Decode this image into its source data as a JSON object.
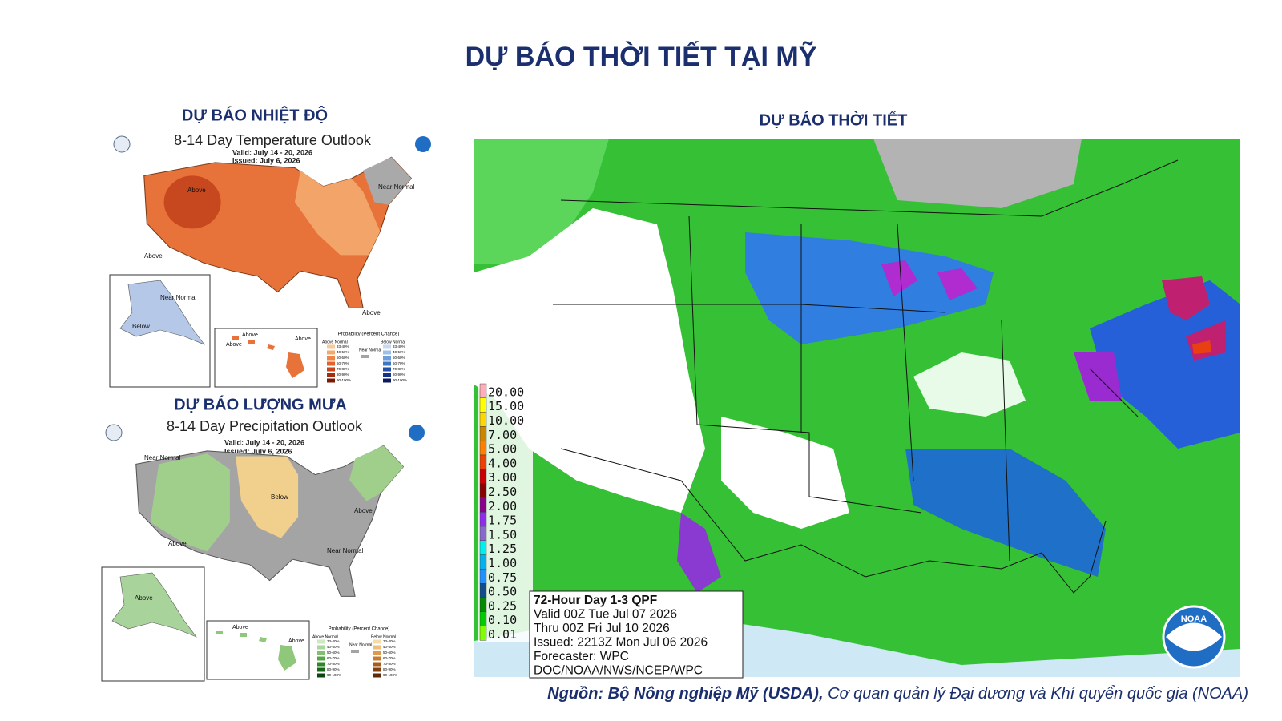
{
  "title": "DỰ BÁO THỜI TIẾT TẠI MỸ",
  "temperature": {
    "heading": "DỰ BÁO NHIỆT ĐỘ",
    "map_title": "8-14 Day Temperature Outlook",
    "valid": "Valid: July 14 - 20, 2026",
    "issued": "Issued: July 6, 2026",
    "labels": [
      "Above",
      "Near Normal",
      "Above",
      "Above",
      "Near Normal",
      "Below",
      "Above",
      "Above",
      "Above"
    ],
    "legend": {
      "title": "Probability (Percent Chance)",
      "above": "Above Normal",
      "near": "Near Normal",
      "below": "Below Normal",
      "ranges": [
        "33-40%",
        "40-50%",
        "50-60%",
        "60-70%",
        "70-80%",
        "80-90%",
        "90-100%"
      ],
      "above_colors": [
        "#f8c99b",
        "#f5a86b",
        "#ee8544",
        "#e3612b",
        "#c8431c",
        "#a32d10",
        "#7a1a06"
      ],
      "below_colors": [
        "#c9d9f0",
        "#9dbfe8",
        "#6c9edb",
        "#3e76c6",
        "#2350a8",
        "#15318a",
        "#0b1a5e"
      ]
    }
  },
  "precipitation": {
    "heading": "DỰ BÁO LƯỢNG MƯA",
    "map_title": "8-14 Day Precipitation Outlook",
    "valid": "Valid: July 14 - 20, 2026",
    "issued": "Issued: July 6, 2026",
    "labels": [
      "Near Normal",
      "Below",
      "Above",
      "Above",
      "Near Normal",
      "Above",
      "Above",
      "Above"
    ],
    "legend": {
      "title": "Probability (Percent Chance)",
      "above": "Above Normal",
      "near": "Near Normal",
      "below": "Below Normal",
      "ranges": [
        "33-40%",
        "40-50%",
        "50-60%",
        "60-70%",
        "70-80%",
        "80-90%",
        "90-100%"
      ],
      "above_colors": [
        "#cfe8c4",
        "#a9d69a",
        "#7fbf6e",
        "#55a445",
        "#30862a",
        "#186718",
        "#0a480c"
      ],
      "below_colors": [
        "#f4dca8",
        "#eebf7a",
        "#e09a4d",
        "#c97a2e",
        "#a65c1c",
        "#82400f",
        "#5e2a07"
      ]
    }
  },
  "qpf": {
    "heading": "DỰ BÁO THỜI TIẾT",
    "legend": [
      {
        "label": "20.00",
        "color": "#ffaeb9"
      },
      {
        "label": "15.00",
        "color": "#ffff00"
      },
      {
        "label": "10.00",
        "color": "#ffd700"
      },
      {
        "label": "7.00",
        "color": "#cd8500"
      },
      {
        "label": "5.00",
        "color": "#ff7f00"
      },
      {
        "label": "4.00",
        "color": "#ee4000"
      },
      {
        "label": "3.00",
        "color": "#cd0000"
      },
      {
        "label": "2.50",
        "color": "#8b0000"
      },
      {
        "label": "2.00",
        "color": "#8b008b"
      },
      {
        "label": "1.75",
        "color": "#912cee"
      },
      {
        "label": "1.50",
        "color": "#8968cd"
      },
      {
        "label": "1.25",
        "color": "#00eeee"
      },
      {
        "label": "1.00",
        "color": "#00b2ee"
      },
      {
        "label": "0.75",
        "color": "#1e90ff"
      },
      {
        "label": "0.50",
        "color": "#104e8b"
      },
      {
        "label": "0.25",
        "color": "#008b00"
      },
      {
        "label": "0.10",
        "color": "#00cd00"
      },
      {
        "label": "0.01",
        "color": "#7fff00"
      }
    ],
    "info": [
      "72-Hour Day 1-3 QPF",
      "Valid 00Z Tue Jul 07 2026",
      "Thru 00Z Fri Jul 10 2026",
      "Issued: 2213Z Mon Jul 06 2026",
      "Forecaster: WPC",
      "DOC/NOAA/NWS/NCEP/WPC"
    ],
    "logo": "NOAA"
  },
  "source": {
    "bold": "Nguồn: Bộ Nông nghiệp Mỹ (USDA),",
    "rest": " Cơ quan quản lý Đại dương và Khí quyển quốc gia (NOAA)"
  }
}
